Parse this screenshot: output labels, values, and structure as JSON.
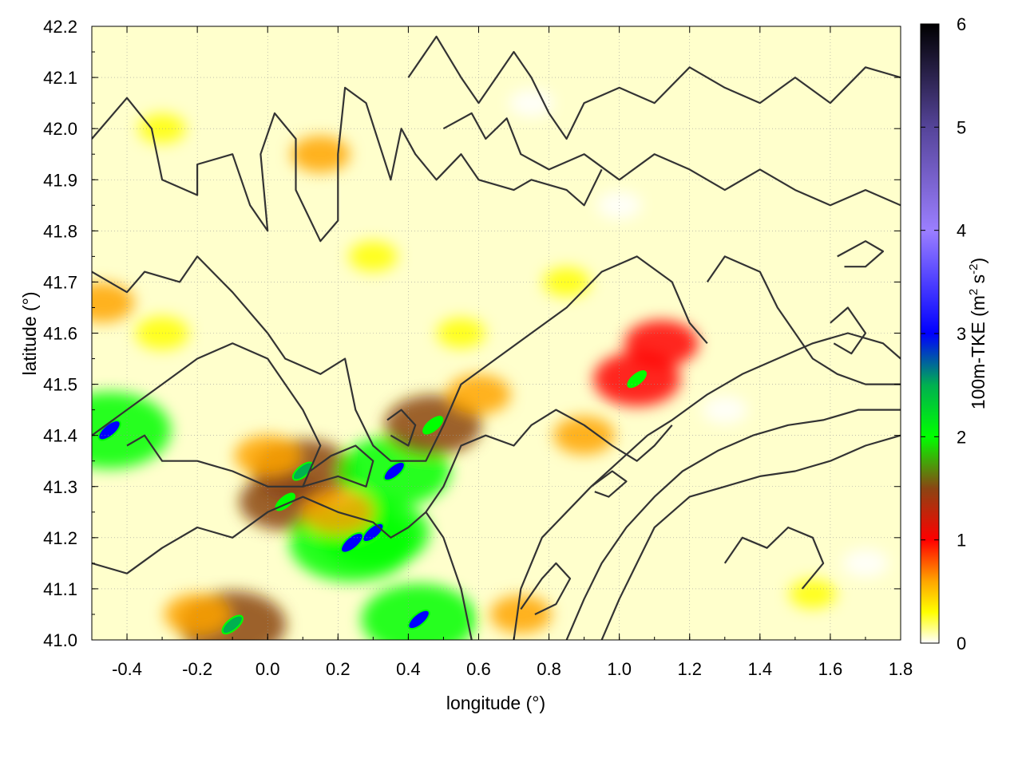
{
  "chart_data": {
    "type": "heatmap",
    "xlabel": "longitude (°)",
    "ylabel": "latitude (°)",
    "colorbar_label": "100m-TKE (m² s⁻²)",
    "colorbar_label_parts": {
      "main": "100m-TKE (m",
      "sup1": "2",
      "mid": " s",
      "sup2": "-2",
      "end": ")"
    },
    "xlim": [
      -0.5,
      1.8
    ],
    "ylim": [
      41.0,
      42.2
    ],
    "xticks": [
      -0.4,
      -0.2,
      0.0,
      0.2,
      0.4,
      0.6,
      0.8,
      1.0,
      1.2,
      1.4,
      1.6,
      1.8
    ],
    "xtick_labels": [
      "-0.4",
      "-0.2",
      "0.0",
      "0.2",
      "0.4",
      "0.6",
      "0.8",
      "1.0",
      "1.2",
      "1.4",
      "1.6",
      "1.8"
    ],
    "yticks": [
      41.0,
      41.1,
      41.2,
      41.3,
      41.4,
      41.5,
      41.6,
      41.7,
      41.8,
      41.9,
      42.0,
      42.1,
      42.2
    ],
    "ytick_labels": [
      "41.0",
      "41.1",
      "41.2",
      "41.3",
      "41.4",
      "41.5",
      "41.6",
      "41.7",
      "41.8",
      "41.9",
      "42.0",
      "42.1",
      "42.2"
    ],
    "colorbar": {
      "range": [
        0,
        6
      ],
      "ticks": [
        0,
        1,
        2,
        3,
        4,
        5,
        6
      ],
      "tick_labels": [
        "0",
        "1",
        "2",
        "3",
        "4",
        "5",
        "6"
      ],
      "stops": [
        {
          "v": 0.0,
          "color": "#ffffff"
        },
        {
          "v": 0.3,
          "color": "#ffff00"
        },
        {
          "v": 0.6,
          "color": "#ffa500"
        },
        {
          "v": 1.0,
          "color": "#ff0000"
        },
        {
          "v": 1.5,
          "color": "#8b4513"
        },
        {
          "v": 2.0,
          "color": "#00ff00"
        },
        {
          "v": 2.5,
          "color": "#00b050"
        },
        {
          "v": 3.0,
          "color": "#0000ff"
        },
        {
          "v": 4.0,
          "color": "#9b7fff"
        },
        {
          "v": 5.0,
          "color": "#554499"
        },
        {
          "v": 6.0,
          "color": "#000000"
        }
      ]
    },
    "grid": true,
    "grid_style": "dotted",
    "field_hotspots": [
      {
        "lon": -0.47,
        "lat": 41.66,
        "tke": 1.1
      },
      {
        "lon": 0.1,
        "lat": 41.33,
        "tke": 2.6
      },
      {
        "lon": 0.05,
        "lat": 41.27,
        "tke": 2.2
      },
      {
        "lon": -0.45,
        "lat": 41.41,
        "tke": 3.4
      },
      {
        "lon": 0.24,
        "lat": 41.19,
        "tke": 3.5
      },
      {
        "lon": 0.3,
        "lat": 41.21,
        "tke": 3.0
      },
      {
        "lon": 0.36,
        "lat": 41.33,
        "tke": 3.0
      },
      {
        "lon": 0.47,
        "lat": 41.42,
        "tke": 2.4
      },
      {
        "lon": 0.43,
        "lat": 41.04,
        "tke": 3.1
      },
      {
        "lon": -0.1,
        "lat": 41.03,
        "tke": 2.8
      },
      {
        "lon": 1.05,
        "lat": 41.51,
        "tke": 2.0
      },
      {
        "lon": 1.12,
        "lat": 41.58,
        "tke": 1.5
      },
      {
        "lon": 0.2,
        "lat": 41.25,
        "tke": 1.4
      },
      {
        "lon": 0.0,
        "lat": 41.36,
        "tke": 1.2
      },
      {
        "lon": -0.2,
        "lat": 41.05,
        "tke": 1.2
      },
      {
        "lon": 0.72,
        "lat": 41.05,
        "tke": 1.0
      },
      {
        "lon": 0.9,
        "lat": 41.4,
        "tke": 1.0
      },
      {
        "lon": 0.6,
        "lat": 41.48,
        "tke": 1.1
      },
      {
        "lon": 0.15,
        "lat": 41.95,
        "tke": 0.9
      },
      {
        "lon": -0.3,
        "lat": 41.6,
        "tke": 0.7
      },
      {
        "lon": 0.3,
        "lat": 41.75,
        "tke": 0.5
      },
      {
        "lon": 0.55,
        "lat": 41.6,
        "tke": 0.5
      },
      {
        "lon": 0.85,
        "lat": 41.7,
        "tke": 0.45
      },
      {
        "lon": 1.55,
        "lat": 41.09,
        "tke": 0.45
      },
      {
        "lon": 1.7,
        "lat": 41.15,
        "tke": 0.4
      },
      {
        "lon": 1.0,
        "lat": 41.85,
        "tke": 0.35
      },
      {
        "lon": -0.3,
        "lat": 42.0,
        "tke": 0.45
      },
      {
        "lon": 0.75,
        "lat": 42.05,
        "tke": 0.35
      },
      {
        "lon": 1.3,
        "lat": 41.45,
        "tke": 0.35
      }
    ],
    "contour_lines": [
      [
        [
          -0.5,
          41.98
        ],
        [
          -0.4,
          42.06
        ],
        [
          -0.33,
          42.0
        ],
        [
          -0.3,
          41.9
        ],
        [
          -0.2,
          41.87
        ],
        [
          -0.2,
          41.93
        ],
        [
          -0.1,
          41.95
        ],
        [
          -0.05,
          41.85
        ],
        [
          0.0,
          41.8
        ],
        [
          -0.02,
          41.95
        ],
        [
          0.02,
          42.03
        ],
        [
          0.08,
          41.98
        ],
        [
          0.08,
          41.88
        ],
        [
          0.15,
          41.78
        ],
        [
          0.2,
          41.82
        ],
        [
          0.2,
          41.95
        ],
        [
          0.22,
          42.08
        ],
        [
          0.28,
          42.05
        ],
        [
          0.35,
          41.9
        ],
        [
          0.38,
          42.0
        ],
        [
          0.42,
          41.95
        ],
        [
          0.48,
          41.9
        ],
        [
          0.55,
          41.95
        ],
        [
          0.6,
          41.9
        ],
        [
          0.7,
          41.88
        ],
        [
          0.75,
          41.9
        ],
        [
          0.85,
          41.88
        ],
        [
          0.9,
          41.85
        ],
        [
          0.95,
          41.92
        ]
      ],
      [
        [
          -0.5,
          41.72
        ],
        [
          -0.4,
          41.68
        ],
        [
          -0.35,
          41.72
        ],
        [
          -0.25,
          41.7
        ],
        [
          -0.2,
          41.75
        ],
        [
          -0.1,
          41.68
        ],
        [
          0.0,
          41.6
        ],
        [
          0.05,
          41.55
        ],
        [
          0.15,
          41.52
        ],
        [
          0.22,
          41.55
        ],
        [
          0.25,
          41.45
        ],
        [
          0.3,
          41.38
        ],
        [
          0.35,
          41.35
        ],
        [
          0.45,
          41.35
        ],
        [
          0.5,
          41.42
        ],
        [
          0.55,
          41.5
        ],
        [
          0.65,
          41.55
        ],
        [
          0.75,
          41.6
        ],
        [
          0.85,
          41.65
        ],
        [
          0.95,
          41.72
        ],
        [
          1.05,
          41.75
        ],
        [
          1.15,
          41.7
        ],
        [
          1.2,
          41.62
        ],
        [
          1.25,
          41.58
        ]
      ],
      [
        [
          -0.5,
          41.4
        ],
        [
          -0.4,
          41.45
        ],
        [
          -0.3,
          41.5
        ],
        [
          -0.2,
          41.55
        ],
        [
          -0.1,
          41.58
        ],
        [
          0.0,
          41.55
        ],
        [
          0.1,
          41.45
        ],
        [
          0.15,
          41.38
        ],
        [
          0.1,
          41.3
        ],
        [
          0.0,
          41.3
        ],
        [
          -0.1,
          41.33
        ],
        [
          -0.2,
          41.35
        ],
        [
          -0.3,
          41.35
        ],
        [
          -0.35,
          41.4
        ],
        [
          -0.4,
          41.38
        ]
      ],
      [
        [
          -0.5,
          41.15
        ],
        [
          -0.4,
          41.13
        ],
        [
          -0.3,
          41.18
        ],
        [
          -0.2,
          41.22
        ],
        [
          -0.1,
          41.2
        ],
        [
          0.0,
          41.25
        ],
        [
          0.1,
          41.28
        ],
        [
          0.2,
          41.25
        ],
        [
          0.3,
          41.23
        ],
        [
          0.35,
          41.2
        ],
        [
          0.4,
          41.22
        ],
        [
          0.45,
          41.25
        ],
        [
          0.5,
          41.2
        ],
        [
          0.55,
          41.1
        ],
        [
          0.58,
          41.0
        ]
      ],
      [
        [
          0.1,
          41.3
        ],
        [
          0.2,
          41.32
        ],
        [
          0.28,
          41.3
        ],
        [
          0.3,
          41.35
        ],
        [
          0.25,
          41.38
        ],
        [
          0.18,
          41.36
        ],
        [
          0.12,
          41.33
        ]
      ],
      [
        [
          0.35,
          41.4
        ],
        [
          0.4,
          41.38
        ],
        [
          0.42,
          41.42
        ],
        [
          0.38,
          41.45
        ],
        [
          0.34,
          41.43
        ]
      ],
      [
        [
          0.45,
          41.25
        ],
        [
          0.5,
          41.3
        ],
        [
          0.55,
          41.38
        ],
        [
          0.62,
          41.4
        ],
        [
          0.7,
          41.38
        ],
        [
          0.75,
          41.42
        ],
        [
          0.82,
          41.45
        ],
        [
          0.9,
          41.42
        ],
        [
          0.98,
          41.38
        ],
        [
          1.05,
          41.35
        ],
        [
          1.1,
          41.38
        ],
        [
          1.15,
          41.42
        ]
      ],
      [
        [
          0.7,
          41.0
        ],
        [
          0.72,
          41.1
        ],
        [
          0.78,
          41.2
        ],
        [
          0.85,
          41.25
        ],
        [
          0.92,
          41.3
        ],
        [
          1.0,
          41.35
        ],
        [
          1.08,
          41.4
        ],
        [
          1.15,
          41.43
        ],
        [
          1.25,
          41.48
        ],
        [
          1.35,
          41.52
        ],
        [
          1.45,
          41.55
        ],
        [
          1.55,
          41.58
        ],
        [
          1.65,
          41.6
        ],
        [
          1.75,
          41.58
        ],
        [
          1.8,
          41.55
        ]
      ],
      [
        [
          0.85,
          41.0
        ],
        [
          0.9,
          41.08
        ],
        [
          0.95,
          41.15
        ],
        [
          1.02,
          41.22
        ],
        [
          1.1,
          41.28
        ],
        [
          1.18,
          41.33
        ],
        [
          1.28,
          41.37
        ],
        [
          1.38,
          41.4
        ],
        [
          1.48,
          41.42
        ],
        [
          1.58,
          41.43
        ],
        [
          1.68,
          41.45
        ],
        [
          1.8,
          41.45
        ]
      ],
      [
        [
          0.95,
          41.0
        ],
        [
          1.0,
          41.08
        ],
        [
          1.05,
          41.15
        ],
        [
          1.1,
          41.22
        ],
        [
          1.2,
          41.28
        ],
        [
          1.3,
          41.3
        ],
        [
          1.4,
          41.32
        ],
        [
          1.5,
          41.33
        ],
        [
          1.6,
          41.35
        ],
        [
          1.7,
          41.38
        ],
        [
          1.8,
          41.4
        ]
      ],
      [
        [
          0.72,
          41.06
        ],
        [
          0.78,
          41.12
        ],
        [
          0.82,
          41.15
        ],
        [
          0.86,
          41.12
        ],
        [
          0.82,
          41.07
        ],
        [
          0.76,
          41.05
        ]
      ],
      [
        [
          0.92,
          41.3
        ],
        [
          0.98,
          41.33
        ],
        [
          1.02,
          41.31
        ],
        [
          0.97,
          41.28
        ],
        [
          0.93,
          41.29
        ]
      ],
      [
        [
          1.3,
          41.15
        ],
        [
          1.35,
          41.2
        ],
        [
          1.42,
          41.18
        ],
        [
          1.48,
          41.22
        ],
        [
          1.55,
          41.2
        ],
        [
          1.58,
          41.15
        ],
        [
          1.52,
          41.1
        ]
      ],
      [
        [
          0.4,
          42.1
        ],
        [
          0.48,
          42.18
        ],
        [
          0.55,
          42.1
        ],
        [
          0.6,
          42.05
        ],
        [
          0.65,
          42.1
        ],
        [
          0.7,
          42.15
        ],
        [
          0.75,
          42.1
        ],
        [
          0.8,
          42.03
        ],
        [
          0.85,
          41.98
        ],
        [
          0.9,
          42.05
        ],
        [
          1.0,
          42.08
        ],
        [
          1.1,
          42.05
        ],
        [
          1.2,
          42.12
        ],
        [
          1.3,
          42.08
        ],
        [
          1.4,
          42.05
        ],
        [
          1.5,
          42.1
        ],
        [
          1.6,
          42.05
        ],
        [
          1.7,
          42.12
        ],
        [
          1.8,
          42.1
        ]
      ],
      [
        [
          0.5,
          42.0
        ],
        [
          0.58,
          42.03
        ],
        [
          0.62,
          41.98
        ],
        [
          0.68,
          42.02
        ],
        [
          0.72,
          41.95
        ],
        [
          0.8,
          41.92
        ],
        [
          0.9,
          41.95
        ],
        [
          1.0,
          41.9
        ],
        [
          1.1,
          41.95
        ],
        [
          1.2,
          41.92
        ],
        [
          1.3,
          41.88
        ],
        [
          1.4,
          41.92
        ],
        [
          1.5,
          41.88
        ],
        [
          1.6,
          41.85
        ],
        [
          1.7,
          41.88
        ],
        [
          1.8,
          41.85
        ]
      ],
      [
        [
          1.25,
          41.7
        ],
        [
          1.3,
          41.75
        ],
        [
          1.4,
          41.72
        ],
        [
          1.45,
          41.65
        ],
        [
          1.5,
          41.6
        ],
        [
          1.55,
          41.55
        ],
        [
          1.62,
          41.52
        ],
        [
          1.7,
          41.5
        ],
        [
          1.8,
          41.5
        ]
      ],
      [
        [
          1.6,
          41.62
        ],
        [
          1.65,
          41.65
        ],
        [
          1.7,
          41.6
        ],
        [
          1.66,
          41.56
        ],
        [
          1.61,
          41.58
        ]
      ],
      [
        [
          1.62,
          41.75
        ],
        [
          1.7,
          41.78
        ],
        [
          1.75,
          41.76
        ],
        [
          1.7,
          41.73
        ],
        [
          1.64,
          41.73
        ]
      ]
    ]
  }
}
